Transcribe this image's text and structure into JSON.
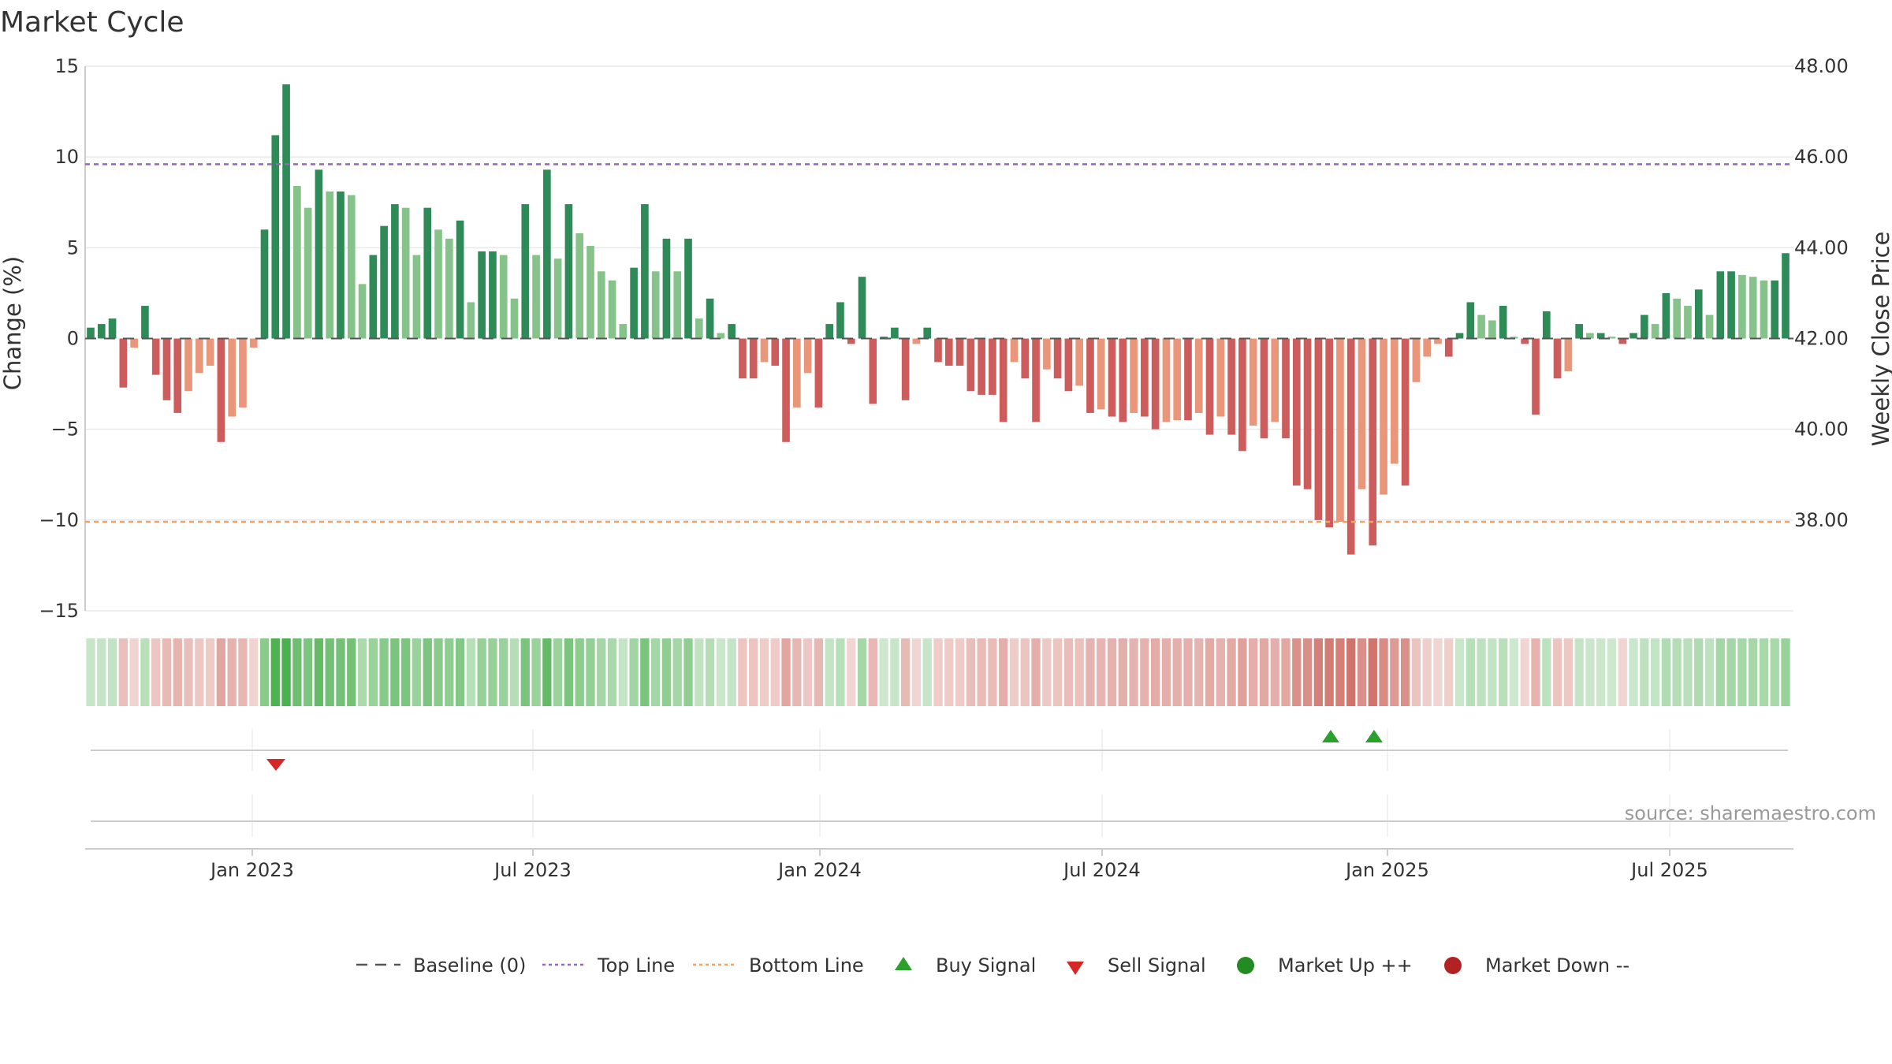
{
  "chart_data": {
    "type": "bar",
    "title": "Market Cycle",
    "ylabel": "Change (%)",
    "y2label": "Weekly Close Price",
    "ylim": [
      -15,
      15
    ],
    "y2lim": [
      36,
      48
    ],
    "yticks": [
      "15",
      "10",
      "5",
      "0",
      "−5",
      "−10",
      "−15"
    ],
    "y2ticks": [
      "48.00",
      "46.00",
      "44.00",
      "42.00",
      "40.00",
      "38.00"
    ],
    "xticks": [
      "Jan 2023",
      "Jul 2023",
      "Jan 2024",
      "Jul 2024",
      "Jan 2025",
      "Jul 2025"
    ],
    "top_line": 9.6,
    "bottom_line": -10.1,
    "buy_signals": [
      "Dec 2024 wk2",
      "Dec 2024 wk5"
    ],
    "sell_signals": [
      "Jan 2023 wk3"
    ],
    "grid": true,
    "legend_position": "bottom",
    "source": "source: sharemaestro.com",
    "colors": {
      "up_strong": "#2e8b57",
      "up_weak": "#86c38a",
      "down_strong": "#cd5c5c",
      "down_weak": "#e9967a",
      "top_line": "#9467bd",
      "bottom_line": "#f4a460",
      "buy": "#2ca02c",
      "sell": "#d62728",
      "market_up": "#228b22",
      "market_down": "#b22222"
    },
    "values": [
      0.6,
      0.8,
      1.1,
      -2.7,
      -0.5,
      1.8,
      -2.0,
      -3.4,
      -4.1,
      -2.9,
      -1.9,
      -1.5,
      -5.7,
      -4.3,
      -3.8,
      -0.5,
      6.0,
      11.2,
      14.0,
      8.4,
      7.2,
      9.3,
      8.1,
      8.1,
      7.9,
      3.0,
      4.6,
      6.2,
      7.4,
      7.2,
      4.6,
      7.2,
      6.0,
      5.5,
      6.5,
      2.0,
      4.8,
      4.8,
      4.6,
      2.2,
      7.4,
      4.6,
      9.3,
      4.4,
      7.4,
      5.8,
      5.1,
      3.7,
      3.2,
      0.8,
      3.9,
      7.4,
      3.7,
      5.5,
      3.7,
      5.5,
      1.1,
      2.2,
      0.3,
      0.8,
      -2.2,
      -2.2,
      -1.3,
      -1.5,
      -5.7,
      -3.8,
      -1.9,
      -3.8,
      0.8,
      2.0,
      -0.3,
      3.4,
      -3.6,
      0.1,
      0.6,
      -3.4,
      -0.3,
      0.6,
      -1.3,
      -1.5,
      -1.5,
      -2.9,
      -3.1,
      -3.1,
      -4.6,
      -1.3,
      -2.2,
      -4.6,
      -1.7,
      -2.2,
      -2.9,
      -2.6,
      -4.1,
      -3.9,
      -4.3,
      -4.6,
      -4.1,
      -4.3,
      -5.0,
      -4.6,
      -4.5,
      -4.5,
      -4.1,
      -5.3,
      -4.3,
      -5.3,
      -6.2,
      -4.8,
      -5.5,
      -4.6,
      -5.5,
      -8.1,
      -8.3,
      -10.0,
      -10.4,
      -10.1,
      -11.9,
      -8.3,
      -11.4,
      -8.6,
      -6.9,
      -8.1,
      -2.4,
      -1.0,
      -0.3,
      -1.0,
      0.3,
      2.0,
      1.3,
      1.0,
      1.8,
      0.1,
      -0.3,
      -4.2,
      1.5,
      -2.2,
      -1.8,
      0.8,
      0.3,
      0.3,
      0.1,
      -0.3,
      0.3,
      1.3,
      0.8,
      2.5,
      2.2,
      1.8,
      2.7,
      1.3,
      3.7,
      3.7,
      3.5,
      3.4,
      3.2,
      3.2,
      4.7
    ],
    "series": [
      {
        "name": "Baseline (0)"
      },
      {
        "name": "Top Line"
      },
      {
        "name": "Bottom Line"
      },
      {
        "name": "Buy Signal"
      },
      {
        "name": "Sell Signal"
      },
      {
        "name": "Market Up ++"
      },
      {
        "name": "Market Down --"
      }
    ]
  }
}
